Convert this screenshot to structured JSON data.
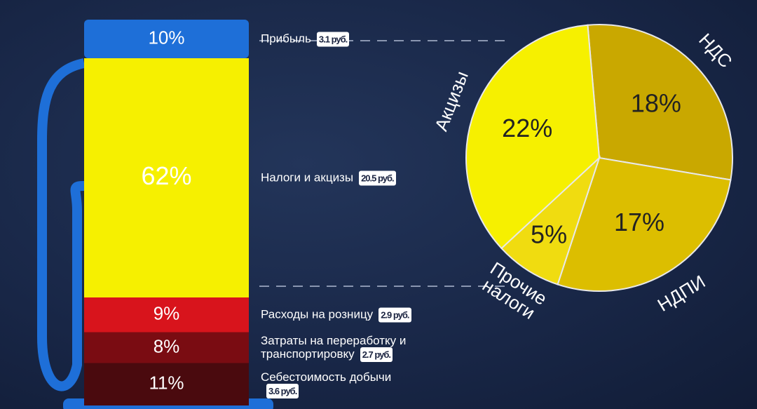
{
  "chart_data": [
    {
      "type": "stacked-bar",
      "categories": [
        "Себестоимость добычи",
        "Затраты на переработку и транспортировку",
        "Расходы на розницу",
        "Налоги и акцизы",
        "Прибыль"
      ],
      "values": [
        11,
        8,
        9,
        62,
        10
      ],
      "value_labels": [
        "11%",
        "8%",
        "9%",
        "62%",
        "10%"
      ],
      "colors": [
        "#4a0a0e",
        "#7a0c12",
        "#d8141c",
        "#f6f000",
        "#1e6fd8"
      ],
      "annotations": [
        "3.6 руб.",
        "2.7 руб.",
        "2.9 руб.",
        "20.5 руб.",
        "3.1 руб."
      ]
    },
    {
      "type": "pie",
      "categories": [
        "НДС",
        "НДПИ",
        "Прочие налоги",
        "Акцизы"
      ],
      "values": [
        18,
        17,
        5,
        22
      ],
      "value_labels": [
        "18%",
        "17%",
        "5%",
        "22%"
      ],
      "colors": [
        "#c9a800",
        "#dcbe00",
        "#f0dc10",
        "#f6f000"
      ]
    }
  ]
}
